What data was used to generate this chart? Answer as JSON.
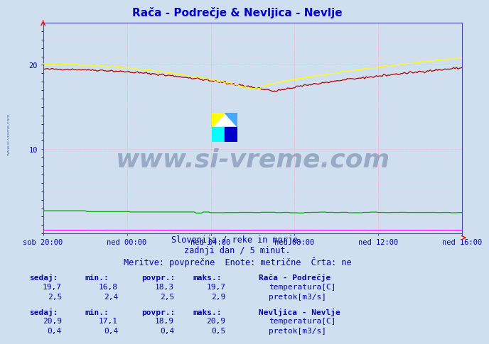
{
  "title": "Rača - Podrečje & Nevljica - Nevlje",
  "title_color": "#0000cc",
  "bg_color": "#d0dff0",
  "plot_bg_color": "#d0dff0",
  "xlabel_ticks": [
    "sob 20:00",
    "ned 00:00",
    "ned 04:00",
    "ned 08:00",
    "ned 12:00",
    "ned 16:00"
  ],
  "ylim": [
    0,
    25
  ],
  "yticks": [
    10,
    20
  ],
  "grid_color": "#ffaaaa",
  "grid_minor_color": "#ffcccc",
  "n_points": 289,
  "raca_temp_color": "#aa0000",
  "raca_flow_color": "#00aa00",
  "nevl_temp_color": "#ffff00",
  "nevl_flow_color": "#ff00ff",
  "legend1_title": "Rača - Podrečje",
  "legend2_title": "Nevljica - Nevlje",
  "stat_headers": [
    "sedaj:",
    "min.:",
    "povpr.:",
    "maks.:"
  ],
  "raca_temp_stats": [
    "19,7",
    "16,8",
    "18,3",
    "19,7"
  ],
  "raca_flow_stats": [
    "2,5",
    "2,4",
    "2,5",
    "2,9"
  ],
  "nevl_temp_stats": [
    "20,9",
    "17,1",
    "18,9",
    "20,9"
  ],
  "nevl_flow_stats": [
    "0,4",
    "0,4",
    "0,4",
    "0,5"
  ],
  "stat_color": "#0000aa",
  "stat_fontsize": 8.0,
  "subtitle_lines": [
    "Slovenija / reke in morje.",
    "zadnji dan / 5 minut.",
    "Meritve: povprečne  Enote: metrične  Črta: ne"
  ],
  "subtitle_color": "#0000aa",
  "subtitle_fontsize": 8.5,
  "watermark_text": "www.si-vreme.com",
  "watermark_color": "#1a3060",
  "watermark_alpha": 0.3,
  "side_watermark": "www.si-vreme.com",
  "side_watermark_color": "#4466aa",
  "axis_color": "#4444aa",
  "tick_color": "#0000aa"
}
